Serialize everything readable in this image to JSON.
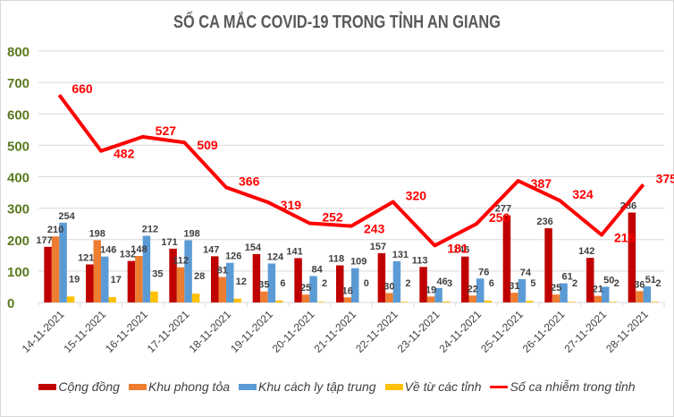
{
  "chart_data": {
    "type": "bar",
    "title": "SỐ CA MẮC COVID-19 TRONG TỈNH AN GIANG",
    "xlabel": "",
    "ylabel": "",
    "ylim": [
      0,
      800
    ],
    "yticks": [
      0,
      100,
      200,
      300,
      400,
      500,
      600,
      700,
      800
    ],
    "grid": true,
    "legend_position": "bottom",
    "categories": [
      "14-11-2021",
      "15-11-2021",
      "16-11-2021",
      "17-11-2021",
      "18-11-2021",
      "19-11-2021",
      "20-11-2021",
      "21-11-2021",
      "22-11-2021",
      "23-11-2021",
      "24-11-2021",
      "25-11-2021",
      "26-11-2021",
      "27-11-2021",
      "28-11-2021"
    ],
    "series": [
      {
        "name": "Cộng đồng",
        "type": "bar",
        "color": "#C00000",
        "values": [
          177,
          121,
          132,
          171,
          147,
          154,
          141,
          118,
          157,
          113,
          146,
          277,
          236,
          142,
          286
        ]
      },
      {
        "name": "Khu phong tỏa",
        "type": "bar",
        "color": "#ED7D31",
        "values": [
          210,
          198,
          148,
          112,
          81,
          35,
          25,
          16,
          30,
          19,
          22,
          31,
          25,
          21,
          36
        ]
      },
      {
        "name": "Khu cách ly tập trung",
        "type": "bar",
        "color": "#5B9BD5",
        "values": [
          254,
          146,
          212,
          198,
          126,
          124,
          84,
          109,
          131,
          46,
          76,
          74,
          61,
          50,
          51
        ]
      },
      {
        "name": "Về từ các tỉnh",
        "type": "bar",
        "color": "#FFC000",
        "values": [
          19,
          17,
          35,
          28,
          12,
          6,
          2,
          0,
          2,
          3,
          6,
          5,
          2,
          2,
          2
        ]
      },
      {
        "name": "Số ca nhiễm trong tỉnh",
        "type": "line",
        "color": "#FF0000",
        "values": [
          660,
          482,
          527,
          509,
          366,
          319,
          252,
          243,
          320,
          181,
          250,
          387,
          324,
          215,
          375
        ]
      }
    ]
  },
  "legend": {
    "items": [
      {
        "label": "Cộng đồng",
        "color": "#C00000",
        "kind": "bar"
      },
      {
        "label": "Khu phong tỏa",
        "color": "#ED7D31",
        "kind": "bar"
      },
      {
        "label": "Khu cách ly tập trung",
        "color": "#5B9BD5",
        "kind": "bar"
      },
      {
        "label": "Về từ các tỉnh",
        "color": "#FFC000",
        "kind": "bar"
      },
      {
        "label": "Số ca nhiễm trong tỉnh",
        "color": "#FF0000",
        "kind": "line"
      }
    ]
  },
  "colors": {
    "axis_label": "#5A7A1E",
    "data_label": "#404040",
    "gridline": "#D9D9D9",
    "title": "#595959"
  }
}
